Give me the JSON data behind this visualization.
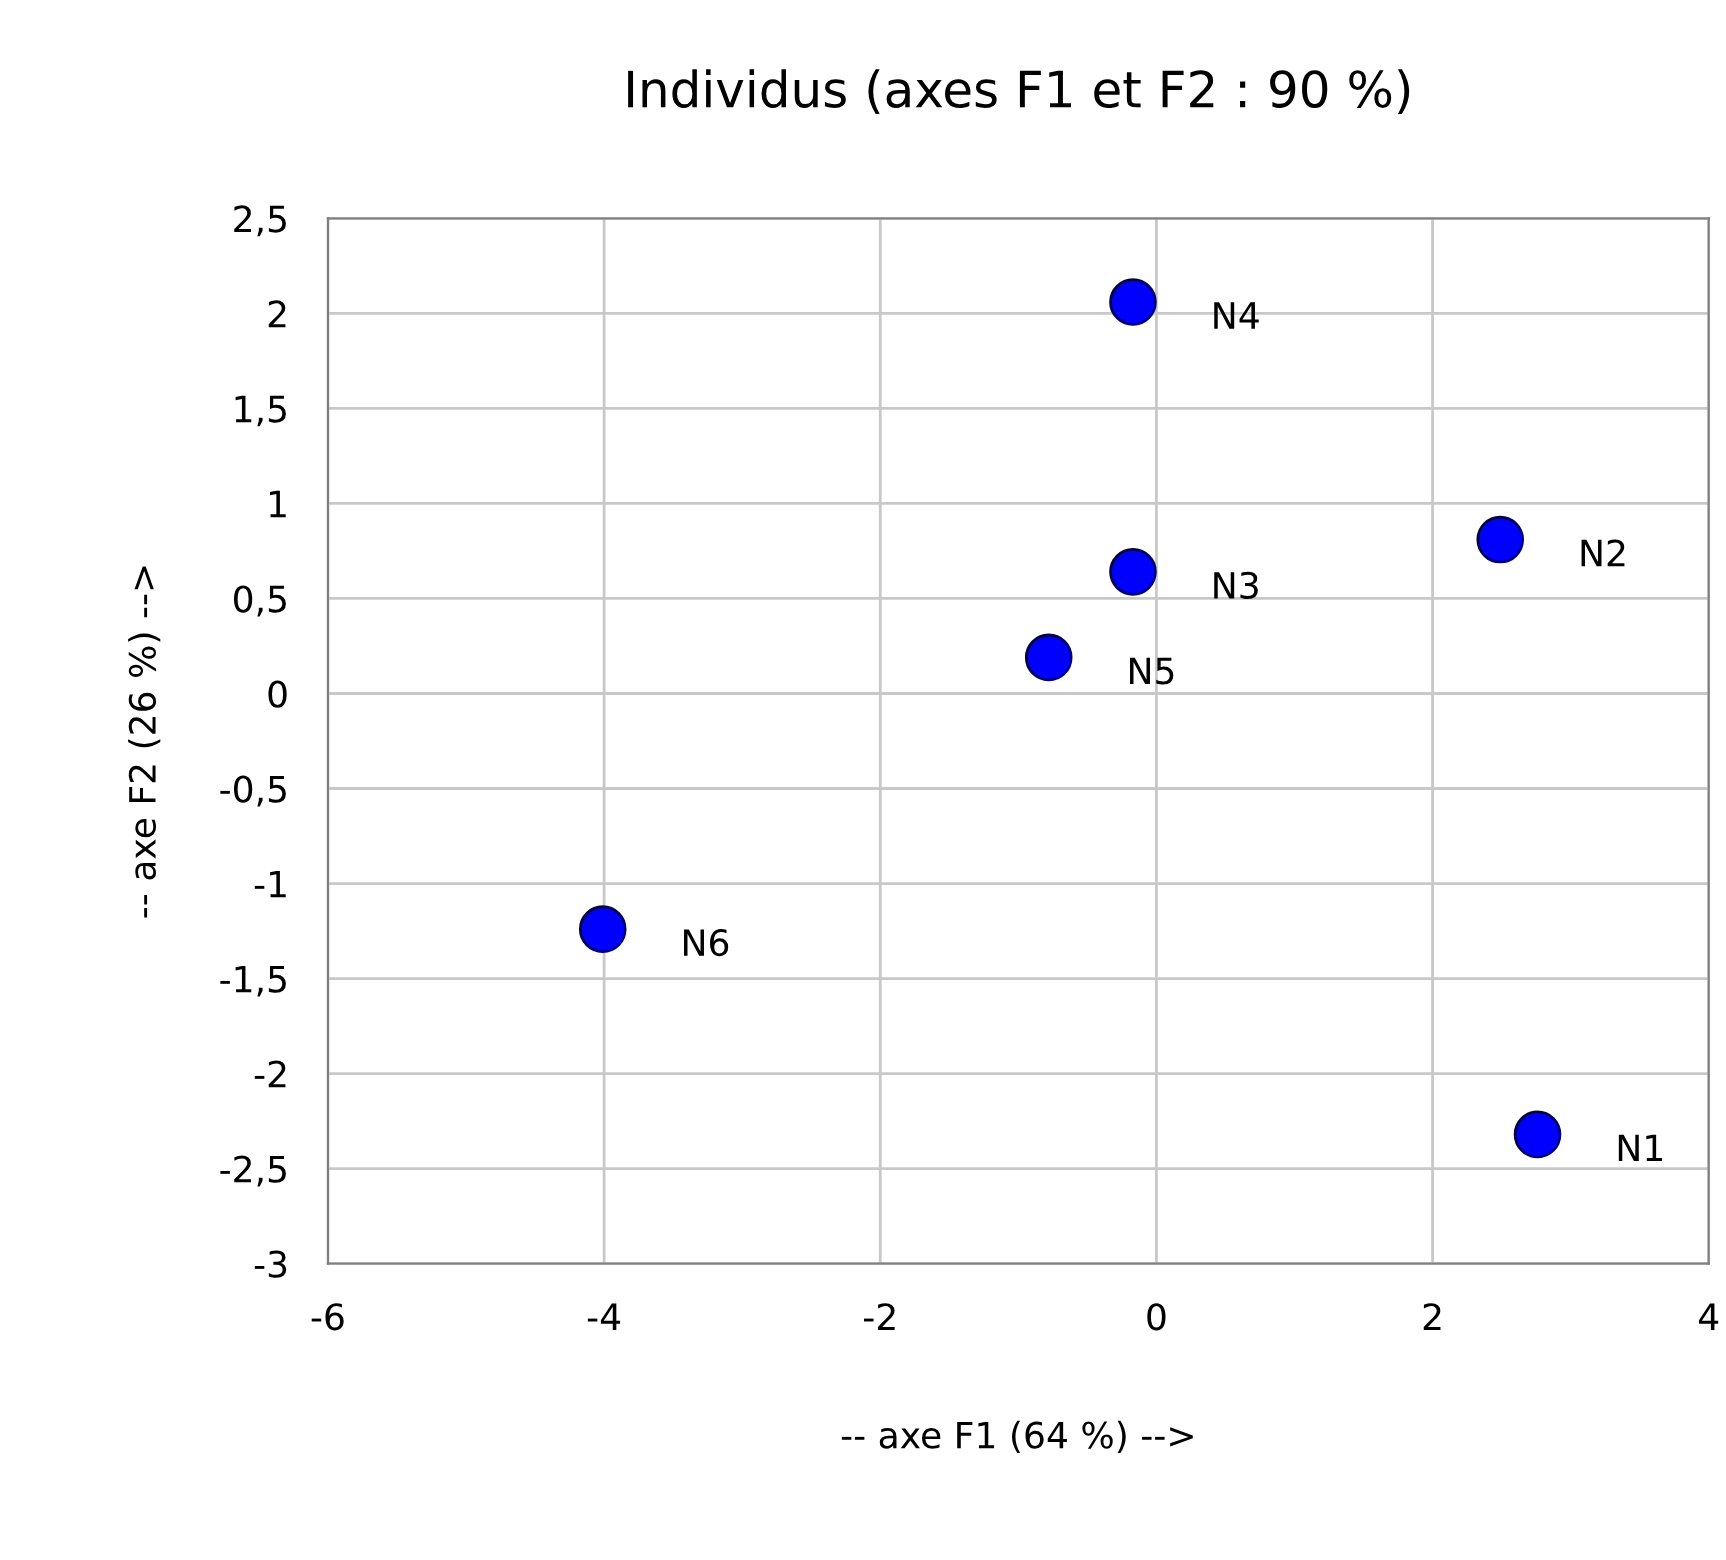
{
  "chart_data": {
    "type": "scatter",
    "title": "Individus (axes F1 et F2 : 90 %)",
    "xlabel": "-- axe F1 (64 %) -->",
    "ylabel": "-- axe F2 (26 %) -->",
    "x": [
      2.76,
      2.49,
      -0.17,
      -0.17,
      -0.78,
      -4.01
    ],
    "series": [
      {
        "color": "#0000ff",
        "values": [
          -2.32,
          0.81,
          0.64,
          2.06,
          0.19,
          -1.24
        ]
      }
    ],
    "annotations": [
      {
        "text": "N1",
        "x": 2.76,
        "y": -2.32
      },
      {
        "text": "N2",
        "x": 2.49,
        "y": 0.81
      },
      {
        "text": "N3",
        "x": -0.17,
        "y": 0.64
      },
      {
        "text": "N4",
        "x": -0.17,
        "y": 2.06
      },
      {
        "text": "N5",
        "x": -0.78,
        "y": 0.19
      },
      {
        "text": "N6",
        "x": -4.01,
        "y": -1.24
      }
    ],
    "xlim": [
      -6,
      4
    ],
    "xticks": [
      -6,
      -4,
      -2,
      0,
      2,
      4
    ],
    "ylim": [
      -3,
      2.5
    ],
    "yticks": [
      {
        "value": -3,
        "label": "-3"
      },
      {
        "value": -2.5,
        "label": "-2,5"
      },
      {
        "value": -2,
        "label": "-2"
      },
      {
        "value": -1.5,
        "label": "-1,5"
      },
      {
        "value": -1,
        "label": "-1"
      },
      {
        "value": -0.5,
        "label": "-0,5"
      },
      {
        "value": 0,
        "label": "0"
      },
      {
        "value": 0.5,
        "label": "0,5"
      },
      {
        "value": 1,
        "label": "1"
      },
      {
        "value": 1.5,
        "label": "1,5"
      },
      {
        "value": 2,
        "label": "2"
      },
      {
        "value": 2.5,
        "label": "2,5"
      }
    ],
    "grid": true,
    "marker": "circle"
  }
}
